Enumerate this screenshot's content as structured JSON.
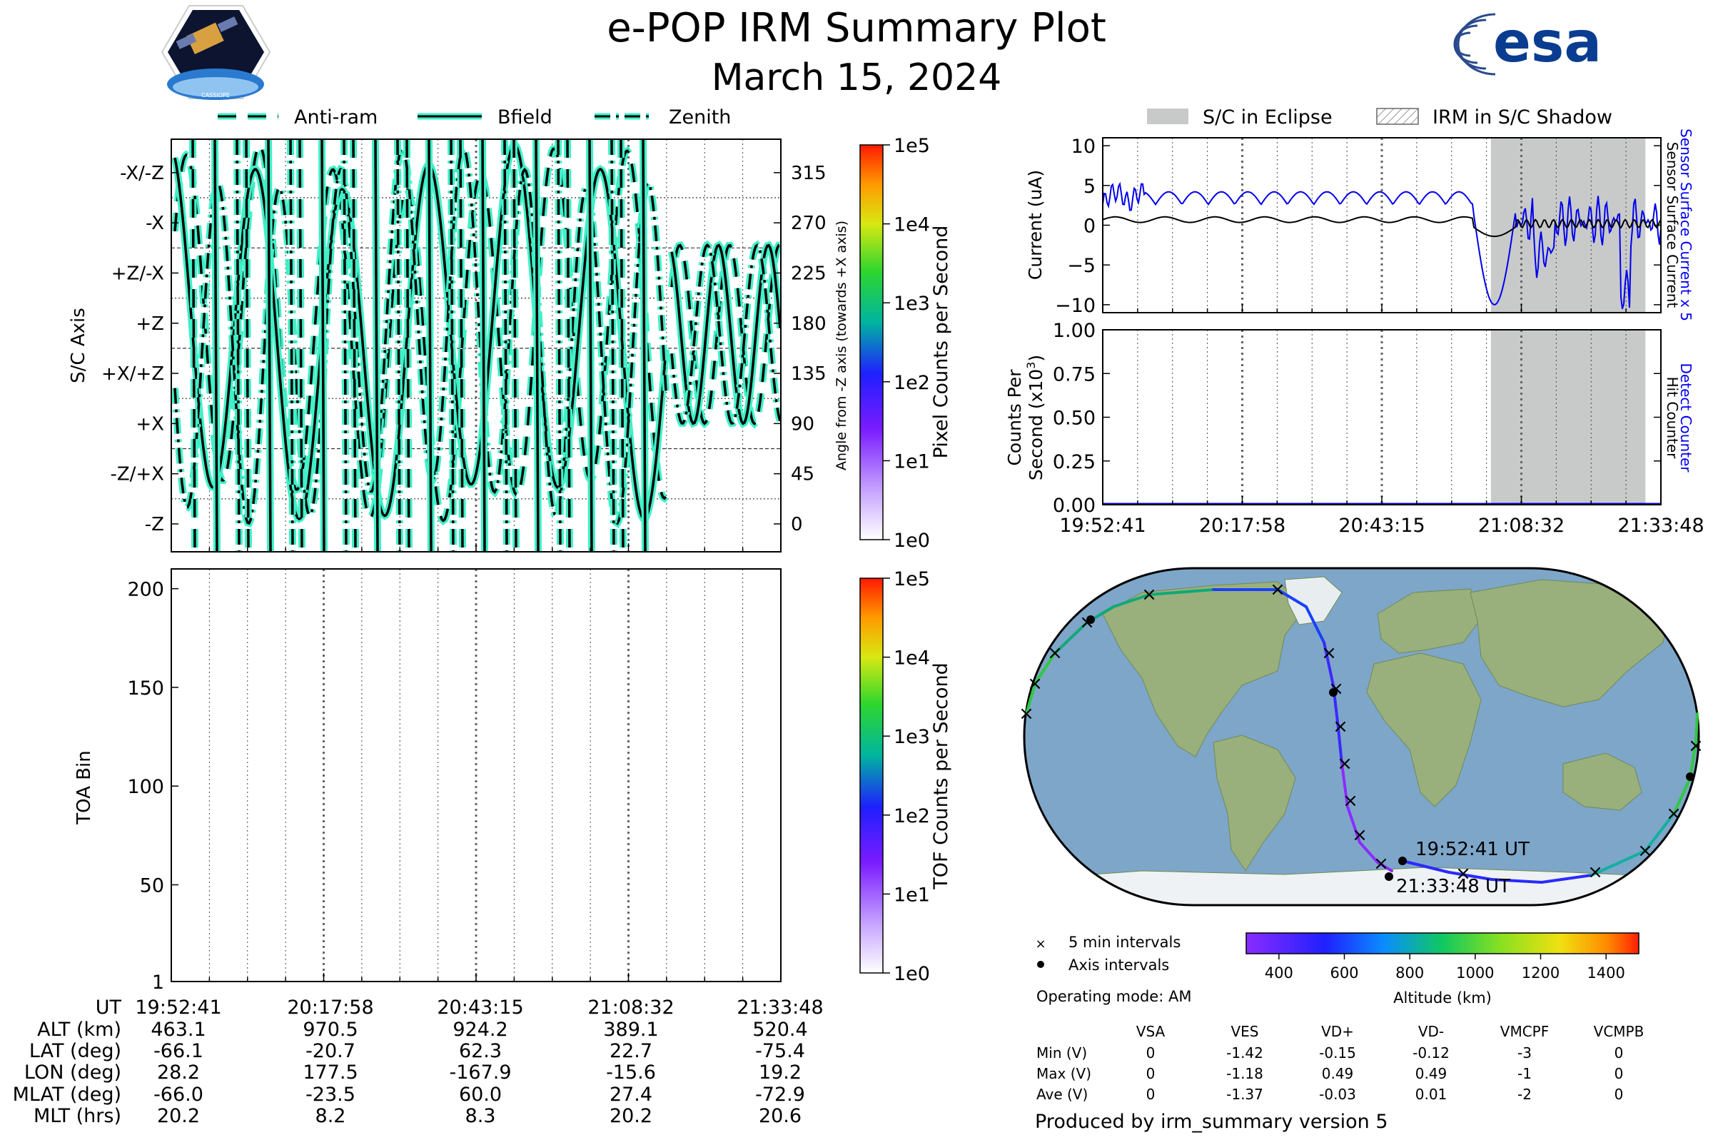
{
  "header": {
    "title": "e-POP IRM Summary Plot",
    "date": "March 15, 2024",
    "left_logo_text": "CASSIOPE",
    "right_logo_text": "esa"
  },
  "colors": {
    "line_cyan": "#3ff0c8",
    "current_blue": "#0000ee",
    "eclipse_gray": "#c8cac9",
    "ocean": "#7ea6c9",
    "land": "#9ab07c"
  },
  "chart_data": [
    {
      "id": "sc-axis",
      "type": "line",
      "legend": [
        "Anti-ram",
        "Bfield",
        "Zenith"
      ],
      "legend_placement": "top",
      "ylabel_left": "S/C Axis",
      "ylabel_right": "Angle from -Z axis (towards +X axis)",
      "yticks_left": [
        "-X/-Z",
        "-X",
        "+Z/-X",
        "+Z",
        "+X/+Z",
        "+X",
        "-Z/+X",
        "-Z"
      ],
      "yticks_right": [
        "315",
        "270",
        "225",
        "180",
        "135",
        "90",
        "45",
        "0"
      ],
      "ylim": [
        -25,
        345
      ],
      "colorbar": {
        "label": "Pixel Counts per Second",
        "ticks": [
          "1e5",
          "1e4",
          "1e3",
          "1e2",
          "1e1",
          "1e0"
        ]
      }
    },
    {
      "id": "toa",
      "type": "heatmap",
      "ylabel": "TOA Bin",
      "yticks": [
        "200",
        "150",
        "100",
        "50",
        "1"
      ],
      "ylim": [
        1,
        210
      ],
      "colorbar": {
        "label": "TOF Counts per Second",
        "ticks": [
          "1e5",
          "1e4",
          "1e3",
          "1e2",
          "1e1",
          "1e0"
        ]
      }
    },
    {
      "id": "current",
      "type": "line",
      "legend": [
        "S/C in Eclipse",
        "IRM in S/C Shadow"
      ],
      "ylabel": "Current (uA)",
      "yticks": [
        "10",
        "5",
        "0",
        "−5",
        "−10"
      ],
      "ylim": [
        -11,
        11
      ],
      "right_label_blue": "Sensor Surface Current x 5",
      "right_label_black": "Sensor Surface Current",
      "eclipse_start": "21:03:00",
      "eclipse_end": "21:31:00"
    },
    {
      "id": "counts",
      "type": "line",
      "ylabel_line1": "Counts Per",
      "ylabel_line2": "Second (x10",
      "ylabel_exp": "3",
      "yticks": [
        "1.00",
        "0.75",
        "0.50",
        "0.25",
        "0.00"
      ],
      "ylim": [
        0,
        1
      ],
      "right_label_blue": "Detect Counter",
      "right_label_black": "Hit Counter",
      "xticks": [
        "19:52:41",
        "20:17:58",
        "20:43:15",
        "21:08:32",
        "21:33:48"
      ]
    },
    {
      "id": "map",
      "type": "scatter",
      "start_label": "19:52:41 UT",
      "end_label": "21:33:48 UT",
      "legend_5min": "5 min intervals",
      "legend_axis": "Axis intervals",
      "altitude_colorbar": {
        "label": "Altitude (km)",
        "ticks": [
          "400",
          "600",
          "800",
          "1000",
          "1200",
          "1400"
        ],
        "range": [
          300,
          1500
        ]
      }
    }
  ],
  "ephemeris": {
    "labels": [
      "UT",
      "ALT (km)",
      "LAT (deg)",
      "LON (deg)",
      "MLAT (deg)",
      "MLT (hrs)"
    ],
    "columns": [
      [
        "19:52:41",
        "463.1",
        "-66.1",
        "28.2",
        "-66.0",
        "20.2"
      ],
      [
        "20:17:58",
        "970.5",
        "-20.7",
        "177.5",
        "-23.5",
        "8.2"
      ],
      [
        "20:43:15",
        "924.2",
        "62.3",
        "-167.9",
        "60.0",
        "8.3"
      ],
      [
        "21:08:32",
        "389.1",
        "22.7",
        "-15.6",
        "27.4",
        "20.2"
      ],
      [
        "21:33:48",
        "520.4",
        "-75.4",
        "19.2",
        "-72.9",
        "20.6"
      ]
    ]
  },
  "operating_mode": "Operating mode: AM",
  "voltages": {
    "headers": [
      "VSA",
      "VES",
      "VD+",
      "VD-",
      "VMCPF",
      "VCMPB"
    ],
    "rows": [
      {
        "label": "Min (V)",
        "values": [
          "0",
          "-1.42",
          "-0.15",
          "-0.12",
          "-3",
          "0"
        ]
      },
      {
        "label": "Max (V)",
        "values": [
          "0",
          "-1.18",
          "0.49",
          "0.49",
          "-1",
          "0"
        ]
      },
      {
        "label": "Ave (V)",
        "values": [
          "0",
          "-1.37",
          "-0.03",
          "0.01",
          "-2",
          "0"
        ]
      }
    ]
  },
  "footer": "Produced by irm_summary version 5"
}
